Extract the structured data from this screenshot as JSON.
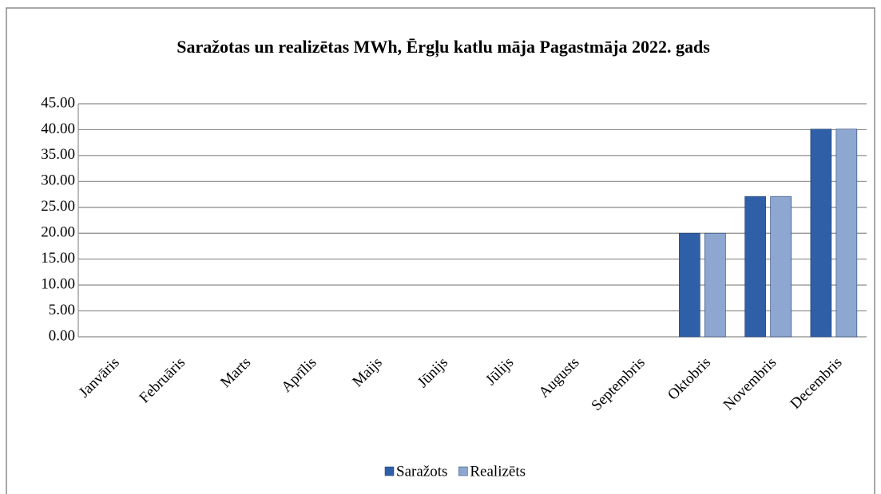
{
  "chart_data": {
    "type": "bar",
    "title": "Saražotas un realizētas MWh, Ērgļu katlu māja Pagastmāja 2022. gads",
    "categories": [
      "Janvāris",
      "Februāris",
      "Marts",
      "Aprīlis",
      "Maijs",
      "Jūnijs",
      "Jūlijs",
      "Augusts",
      "Septembris",
      "Oktobris",
      "Novembris",
      "Decembris"
    ],
    "series": [
      {
        "name": "Saražots",
        "color": "#2f5fa7",
        "values": [
          0,
          0,
          0,
          0,
          0,
          0,
          0,
          0,
          0,
          20,
          27.1,
          40.1
        ]
      },
      {
        "name": "Realizēts",
        "color": "#8ea7d0",
        "values": [
          0,
          0,
          0,
          0,
          0,
          0,
          0,
          0,
          0,
          20,
          27.1,
          40.1
        ]
      }
    ],
    "ylim": [
      0,
      45
    ],
    "yticks": [
      {
        "value": 0,
        "label": "0.00"
      },
      {
        "value": 5,
        "label": "5.00"
      },
      {
        "value": 10,
        "label": "10.00"
      },
      {
        "value": 15,
        "label": "15.00"
      },
      {
        "value": 20,
        "label": "20.00"
      },
      {
        "value": 25,
        "label": "25.00"
      },
      {
        "value": 30,
        "label": "30.00"
      },
      {
        "value": 35,
        "label": "35.00"
      },
      {
        "value": 40,
        "label": "40.00"
      },
      {
        "value": 45,
        "label": "45.00"
      }
    ],
    "grid": true,
    "legend": "bottom"
  }
}
